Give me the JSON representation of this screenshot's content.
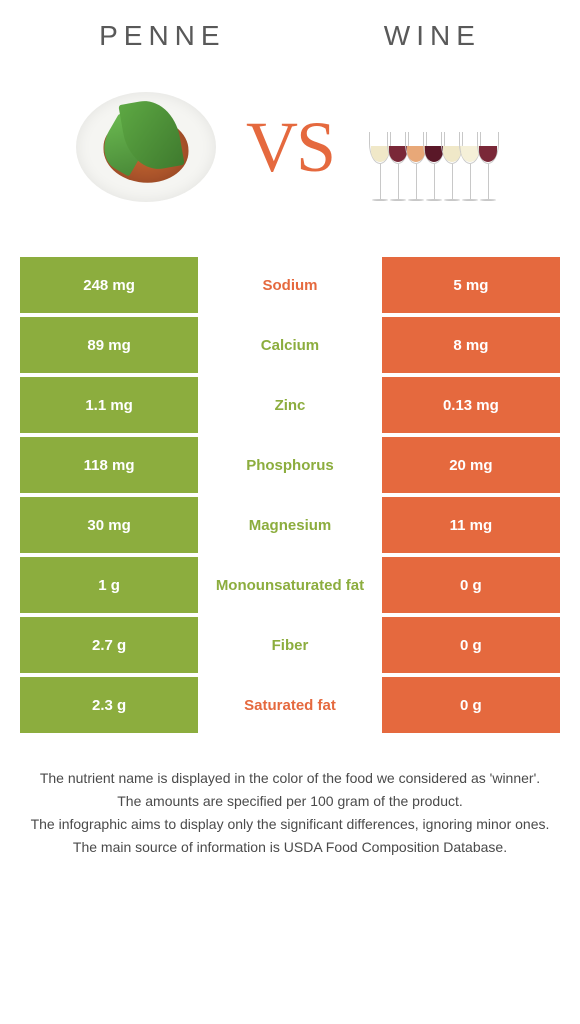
{
  "items": {
    "left": {
      "title": "PENNE",
      "color": "#8cad3e"
    },
    "right": {
      "title": "WINE",
      "color": "#e5693e"
    }
  },
  "vs_label": "VS",
  "table": {
    "left_bg": "#8cad3e",
    "right_bg": "#e5693e",
    "rows": [
      {
        "left": "248 mg",
        "label": "Sodium",
        "right": "5 mg",
        "winner": "right"
      },
      {
        "left": "89 mg",
        "label": "Calcium",
        "right": "8 mg",
        "winner": "left"
      },
      {
        "left": "1.1 mg",
        "label": "Zinc",
        "right": "0.13 mg",
        "winner": "left"
      },
      {
        "left": "118 mg",
        "label": "Phosphorus",
        "right": "20 mg",
        "winner": "left"
      },
      {
        "left": "30 mg",
        "label": "Magnesium",
        "right": "11 mg",
        "winner": "left"
      },
      {
        "left": "1 g",
        "label": "Monounsaturated fat",
        "right": "0 g",
        "winner": "left"
      },
      {
        "left": "2.7 g",
        "label": "Fiber",
        "right": "0 g",
        "winner": "left"
      },
      {
        "left": "2.3 g",
        "label": "Saturated fat",
        "right": "0 g",
        "winner": "right"
      }
    ]
  },
  "wine_glasses": [
    "white",
    "red",
    "rose",
    "dark",
    "white",
    "pale",
    "red"
  ],
  "footnotes": [
    "The nutrient name is displayed in the color of the food we considered as 'winner'.",
    "The amounts are specified per 100 gram of the product.",
    "The infographic aims to display only the significant differences, ignoring minor ones.",
    "The main source of information is USDA Food Composition Database."
  ]
}
